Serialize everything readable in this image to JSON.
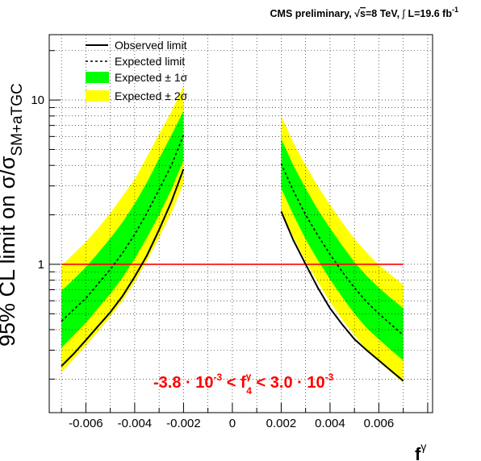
{
  "header": {
    "experiment": "CMS preliminary, ",
    "sqrt": "√",
    "s": "s",
    "energy": "=8 TeV, ",
    "integral": "∫",
    "lumi": " L=19.6 fb",
    "lumi_sup": "-1"
  },
  "ylabel": {
    "main": "95% CL limit on σ/σ",
    "sub": "SM+aTGC"
  },
  "xlabel": {
    "main": "f",
    "sup": "γ"
  },
  "legend": [
    {
      "label": "Observed limit",
      "kind": "solid"
    },
    {
      "label": "Expected limit",
      "kind": "dashed"
    },
    {
      "label": "Expected ± 1σ",
      "kind": "band1"
    },
    {
      "label": "Expected ± 2σ",
      "kind": "band2"
    }
  ],
  "result": {
    "left": "-3.8 · 10",
    "left_exp": "-3",
    "mid": " < f",
    "mid_sup": "γ",
    "mid_sub": "4",
    "right": " < 3.0 · 10",
    "right_exp": "-3"
  },
  "colors": {
    "observed": "#000000",
    "expected": "#000000",
    "band1": "#00ff00",
    "band2": "#ffff00",
    "reference": "#ff0000",
    "result_text": "#ff0000",
    "grid": "#000000"
  },
  "chart_data": {
    "type": "line",
    "xlabel": "fγ",
    "ylabel": "95% CL limit on σ/σSM+aTGC",
    "xlim": [
      -0.0075,
      0.0082
    ],
    "ylim": [
      0.125,
      25
    ],
    "yscale": "log",
    "grid": true,
    "legend_position": "top-left",
    "x_ticks": [
      -0.006,
      -0.004,
      -0.002,
      0,
      0.002,
      0.004,
      0.006
    ],
    "x_tick_labels": [
      "-0.006",
      "-0.004",
      "-0.002",
      "0",
      "0.002",
      "0.004",
      "0.006"
    ],
    "y_ticks": [
      1,
      10
    ],
    "y_tick_labels": [
      "1",
      "10"
    ],
    "reference_line": {
      "y": 1,
      "x_range": [
        -0.007,
        0.007
      ]
    },
    "segments": [
      {
        "x": [
          -0.007,
          -0.0065,
          -0.006,
          -0.0055,
          -0.005,
          -0.0045,
          -0.004,
          -0.0035,
          -0.003,
          -0.0025,
          -0.002
        ],
        "observed": [
          0.24,
          0.285,
          0.345,
          0.42,
          0.51,
          0.64,
          0.84,
          1.13,
          1.62,
          2.4,
          3.8
        ],
        "expected": [
          0.45,
          0.53,
          0.62,
          0.76,
          0.93,
          1.17,
          1.52,
          2.05,
          2.85,
          4.0,
          6.1
        ],
        "band1_low": [
          0.31,
          0.37,
          0.44,
          0.54,
          0.66,
          0.83,
          1.08,
          1.45,
          2.0,
          2.85,
          4.3
        ],
        "band1_high": [
          0.69,
          0.81,
          0.96,
          1.17,
          1.44,
          1.8,
          2.34,
          3.15,
          4.4,
          6.1,
          8.6
        ],
        "band2_low": [
          0.22,
          0.265,
          0.32,
          0.39,
          0.48,
          0.6,
          0.78,
          1.05,
          1.45,
          2.05,
          3.1
        ],
        "band2_high": [
          0.98,
          1.16,
          1.37,
          1.66,
          2.05,
          2.6,
          3.3,
          4.5,
          6.2,
          8.5,
          12.2
        ]
      },
      {
        "x": [
          0.002,
          0.0025,
          0.003,
          0.0035,
          0.004,
          0.0045,
          0.005,
          0.0055,
          0.006,
          0.0065,
          0.007
        ],
        "observed": [
          2.1,
          1.4,
          1.0,
          0.72,
          0.54,
          0.43,
          0.35,
          0.3,
          0.26,
          0.225,
          0.195
        ],
        "expected": [
          4.1,
          2.8,
          2.0,
          1.5,
          1.15,
          0.9,
          0.72,
          0.59,
          0.5,
          0.43,
          0.37
        ],
        "band1_low": [
          2.9,
          2.0,
          1.42,
          1.06,
          0.81,
          0.63,
          0.5,
          0.41,
          0.35,
          0.3,
          0.26
        ],
        "band1_high": [
          5.8,
          4.0,
          2.9,
          2.15,
          1.66,
          1.3,
          1.03,
          0.85,
          0.72,
          0.62,
          0.54
        ],
        "band2_low": [
          2.1,
          1.46,
          1.04,
          0.78,
          0.59,
          0.46,
          0.37,
          0.3,
          0.255,
          0.22,
          0.19
        ],
        "band2_high": [
          8.0,
          5.5,
          4.0,
          3.0,
          2.3,
          1.8,
          1.43,
          1.18,
          0.99,
          0.86,
          0.75
        ]
      }
    ]
  }
}
